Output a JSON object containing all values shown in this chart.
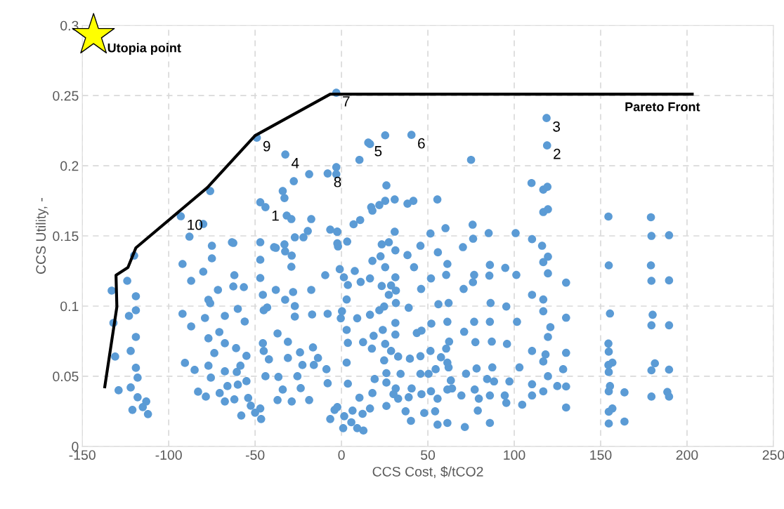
{
  "chart_data": {
    "type": "scatter",
    "xlabel": "CCS Cost, $/tCO2",
    "ylabel": "CCS Utility, -",
    "xlim": [
      -150,
      250
    ],
    "ylim": [
      0,
      0.3
    ],
    "xticks": [
      -150,
      -100,
      -50,
      0,
      50,
      100,
      150,
      200,
      250
    ],
    "yticks": [
      0,
      0.05,
      0.1,
      0.15,
      0.2,
      0.25,
      0.3
    ],
    "grid": true,
    "legend": false,
    "marker": "circle",
    "series": [
      {
        "color": "#5b9bd5",
        "x": [
          -133,
          -132,
          -131,
          -129,
          -124,
          -123,
          -122,
          -122,
          -121,
          -120,
          -119,
          -119,
          -119,
          -119,
          -118,
          -118,
          -115,
          -113,
          -112,
          -76,
          -80,
          -88,
          -47,
          -34,
          -33,
          -27.6,
          -18.7,
          -3,
          -3,
          -31.7,
          -29,
          -17.5,
          -6.5,
          -2.5,
          -27,
          -22,
          -19.5,
          -63.4,
          -75,
          -47,
          -39,
          -33,
          -62.6,
          -92,
          -80,
          -87,
          -75,
          -62,
          -71.5,
          -62.6,
          -56.5,
          -77,
          -76,
          -92,
          -87,
          -79,
          -67.5,
          -60,
          -56,
          -77,
          -70.7,
          -67.5,
          -61,
          -73.6,
          -55,
          -90.6,
          -85,
          -77,
          -75.6,
          -67.5,
          -60.6,
          -58.5,
          -66,
          -60,
          -55,
          -83,
          -78.5,
          -70.5,
          -67.5,
          -62,
          -54,
          -58,
          -52.5,
          -47,
          -46.5,
          -50,
          -47,
          -47,
          -45.5,
          -45,
          -45.5,
          -45,
          -44,
          -43,
          -42,
          -38,
          -38,
          -37,
          -36.5,
          -37,
          -34,
          -32.6,
          -32.6,
          -29,
          -28.8,
          -28,
          -27,
          -27,
          -31,
          -31,
          -28.8,
          -24,
          -22.6,
          -25.5,
          -23.6,
          -18.7,
          -17.5,
          -17,
          -16.5,
          -16,
          -13.6,
          -9.4,
          -8,
          -8.7,
          -8,
          -6.5,
          -4,
          -2,
          25.3,
          10.4,
          16.5,
          75,
          110,
          116.8,
          119.2,
          116.8,
          119.5,
          26,
          30.8,
          25.3,
          21.9,
          17.2,
          17.9,
          38.2,
          41.6,
          55.5,
          10.8,
          7.0,
          -2.4,
          -2.4,
          3.3,
          30.8,
          23.3,
          27.4,
          31.2,
          38.2,
          45.7,
          51.5,
          60.2,
          55.8,
          70.3,
          75.9,
          76.2,
          85.2,
          100.8,
          110.3,
          116.1,
          119.5,
          116.8,
          119.5,
          130,
          110.3,
          116.8,
          116.8,
          130,
          120.9,
          119.5,
          110.3,
          118.1,
          116.8,
          130,
          128.3,
          119.5,
          110.3,
          124.9,
          130,
          116.8,
          110.3,
          130,
          104.6,
          97.2,
          103,
          95.8,
          101.6,
          95.4,
          101.2,
          94.8,
          85.9,
          85.6,
          86.3,
          85.9,
          87,
          87.3,
          84.3,
          88.3,
          85.9,
          94.5,
          95.4,
          85.9,
          78.9,
          79.5,
          77.1,
          78.2,
          77.5,
          76.8,
          76.1,
          76.8,
          70.7,
          71,
          72.1,
          69.4,
          71.4,
          61.3,
          55.6,
          54.2,
          55.6,
          61.3,
          64,
          63.3,
          62,
          61.3,
          62.3,
          60.6,
          61.3,
          62,
          56.1,
          61.3,
          60.6,
          51.8,
          46.1,
          52,
          51.5,
          57.6,
          54.5,
          45.7,
          50.4,
          51.8,
          47.9,
          40.2,
          37.1,
          46.3,
          40.6,
          38.9,
          32.8,
          31.4,
          26,
          16.5,
          12.2,
          12.7,
          9.1,
          5.7,
          1,
          1.6,
          6.4,
          -2.4,
          26,
          17.9,
          19.2,
          10.4,
          26,
          34.2,
          30.1,
          32.8,
          24.7,
          28.7,
          25.3,
          17.6,
          12.5,
          18.6,
          23.9,
          31.2,
          31.2,
          43.6,
          46.3,
          39.6,
          45.7,
          3.7,
          3,
          3.7,
          3,
          -0.4,
          9.1,
          0.3,
          3,
          16.5,
          21.9,
          24.7,
          38.9,
          31.5,
          27.4,
          23.3,
          28.7,
          31.5,
          -1,
          1.4,
          3.7,
          11.1,
          16.5,
          7.7,
          17.9,
          22.6,
          25.3,
          31.2,
          42,
          154.5,
          179.1,
          179.4,
          189.6,
          154.7,
          179.1,
          179.4,
          189.6,
          155.4,
          180.1,
          179.4,
          189.6,
          154.5,
          154.7,
          156.8,
          154.5,
          154.7,
          181.4,
          179.4,
          189.6,
          155.4,
          154.7,
          163.8,
          179.4,
          188.6,
          189.6,
          156.8,
          154.7,
          154.7,
          163.8,
          -3,
          -49,
          -32.5,
          -8,
          -93,
          -44,
          15.5,
          40.5,
          118.7,
          119
        ],
        "values": [
          0.111,
          0.088,
          0.064,
          0.04,
          0.118,
          0.093,
          0.068,
          0.042,
          0.026,
          0.136,
          0.107,
          0.097,
          0.078,
          0.056,
          0.049,
          0.035,
          0.028,
          0.032,
          0.023,
          0.182,
          0.1585,
          0.1495,
          0.174,
          0.182,
          0.177,
          0.189,
          0.194,
          0.199,
          0.194,
          0.1645,
          0.162,
          0.162,
          0.1545,
          0.153,
          0.149,
          0.149,
          0.1535,
          0.1455,
          0.143,
          0.1455,
          0.142,
          0.144,
          0.145,
          0.13,
          0.1245,
          0.118,
          0.134,
          0.122,
          0.1115,
          0.114,
          0.1135,
          0.1045,
          0.102,
          0.0945,
          0.0855,
          0.0915,
          0.093,
          0.098,
          0.089,
          0.077,
          0.0815,
          0.0735,
          0.07,
          0.0665,
          0.0645,
          0.0595,
          0.0545,
          0.0575,
          0.049,
          0.0535,
          0.053,
          0.0575,
          0.043,
          0.044,
          0.0465,
          0.039,
          0.0355,
          0.038,
          0.032,
          0.0335,
          0.0345,
          0.022,
          0.029,
          0.027,
          0.0195,
          0.024,
          0.133,
          0.12,
          0.108,
          0.097,
          0.0735,
          0.068,
          0.05,
          0.099,
          0.062,
          0.1415,
          0.1115,
          0.0805,
          0.0495,
          0.033,
          0.0405,
          0.139,
          0.1045,
          0.128,
          0.136,
          0.11,
          0.0925,
          0.1,
          0.0745,
          0.063,
          0.032,
          0.067,
          0.058,
          0.05,
          0.0415,
          0.033,
          0.1115,
          0.094,
          0.0705,
          0.058,
          0.063,
          0.122,
          0.0945,
          0.055,
          0.045,
          0.0195,
          0.026,
          0.1425,
          0.2217,
          0.2042,
          0.2155,
          0.2042,
          0.1877,
          0.183,
          0.185,
          0.167,
          0.169,
          0.186,
          0.176,
          0.175,
          0.172,
          0.1705,
          0.168,
          0.173,
          0.175,
          0.176,
          0.1613,
          0.1583,
          0.153,
          0.1447,
          0.146,
          0.153,
          0.144,
          0.1455,
          0.1397,
          0.1363,
          0.143,
          0.1517,
          0.1555,
          0.1383,
          0.142,
          0.158,
          0.148,
          0.152,
          0.152,
          0.1477,
          0.143,
          0.1352,
          0.1313,
          0.1233,
          0.1167,
          0.108,
          0.1047,
          0.0963,
          0.0917,
          0.085,
          0.078,
          0.068,
          0.0655,
          0.0605,
          0.0667,
          0.055,
          0.05,
          0.0443,
          0.043,
          0.0427,
          0.0392,
          0.0363,
          0.0277,
          0.0297,
          0.0463,
          0.0563,
          0.073,
          0.0888,
          0.0997,
          0.1222,
          0.1272,
          0.1293,
          0.1217,
          0.1022,
          0.0888,
          0.0747,
          0.0563,
          0.048,
          0.0463,
          0.0363,
          0.0363,
          0.031,
          0.0167,
          0.0255,
          0.034,
          0.0405,
          0.0555,
          0.0743,
          0.0888,
          0.117,
          0.1222,
          0.1122,
          0.0817,
          0.0518,
          0.0363,
          0.0138,
          0.0167,
          0.0155,
          0.025,
          0.034,
          0.0405,
          0.0413,
          0.047,
          0.0563,
          0.0597,
          0.0747,
          0.0697,
          0.0888,
          0.1022,
          0.1013,
          0.13,
          0.1222,
          0.1197,
          0.1122,
          0.0875,
          0.068,
          0.0635,
          0.055,
          0.0517,
          0.0517,
          0.0393,
          0.0238,
          0.0182,
          0.025,
          0.0372,
          0.0413,
          0.035,
          0.034,
          0.0413,
          0.0288,
          0.027,
          0.0232,
          0.0113,
          0.013,
          0.0172,
          0.013,
          0.0215,
          0.0255,
          0.028,
          0.0455,
          0.038,
          0.048,
          0.0347,
          0.0522,
          0.0517,
          0.0372,
          0.064,
          0.0613,
          0.068,
          0.073,
          0.0697,
          0.0743,
          0.0788,
          0.083,
          0.0797,
          0.088,
          0.0808,
          0.0825,
          0.0625,
          0.0643,
          0.0447,
          0.0597,
          0.0738,
          0.083,
          0.0913,
          0.0913,
          0.0963,
          0.1047,
          0.0938,
          0.097,
          0.0997,
          0.0988,
          0.1022,
          0.108,
          0.1143,
          0.1147,
          0.111,
          0.1263,
          0.1205,
          0.115,
          0.1172,
          0.1197,
          0.125,
          0.1322,
          0.1355,
          0.1277,
          0.1205,
          0.1277,
          0.1638,
          0.1633,
          0.15,
          0.1505,
          0.129,
          0.129,
          0.118,
          0.1183,
          0.0947,
          0.0938,
          0.0863,
          0.0863,
          0.0733,
          0.0675,
          0.0597,
          0.058,
          0.053,
          0.0592,
          0.0542,
          0.0547,
          0.043,
          0.0392,
          0.0385,
          0.0355,
          0.0388,
          0.0355,
          0.027,
          0.0247,
          0.0163,
          0.0177,
          0.252,
          0.22,
          0.208,
          0.1945,
          0.164,
          0.1705,
          0.2165,
          0.222,
          0.234,
          0.2145
        ]
      },
      {
        "type": "line",
        "marker": "none",
        "line_style": "solid",
        "color": "#000000",
        "x": [
          -137,
          -130,
          -130.5,
          -123.6,
          -119,
          -77.6,
          -50,
          -6.5,
          203
        ],
        "values": [
          0.0425,
          0.0995,
          0.122,
          0.1275,
          0.1415,
          0.1845,
          0.2215,
          0.251,
          0.251
        ]
      },
      {
        "type": "scatter",
        "marker": "star",
        "color": "#ffff00",
        "x": [
          -143.5
        ],
        "values": [
          0.293
        ]
      }
    ],
    "annotations": [
      {
        "text": "Utopia point",
        "x": -143.5,
        "y": 0.293
      },
      {
        "text": "Pareto Front",
        "x": 156,
        "y": 0.251
      },
      {
        "text": "7",
        "x": -3,
        "y": 0.252
      },
      {
        "text": "9",
        "x": -49,
        "y": 0.22
      },
      {
        "text": "4",
        "x": -32.5,
        "y": 0.208
      },
      {
        "text": "8",
        "x": -8,
        "y": 0.1945
      },
      {
        "text": "10",
        "x": -93,
        "y": 0.164
      },
      {
        "text": "1",
        "x": -44,
        "y": 0.1705
      },
      {
        "text": "5",
        "x": 15.5,
        "y": 0.2165
      },
      {
        "text": "6",
        "x": 40.5,
        "y": 0.222
      },
      {
        "text": "3",
        "x": 118.7,
        "y": 0.234
      },
      {
        "text": "2",
        "x": 119,
        "y": 0.2145
      }
    ]
  }
}
